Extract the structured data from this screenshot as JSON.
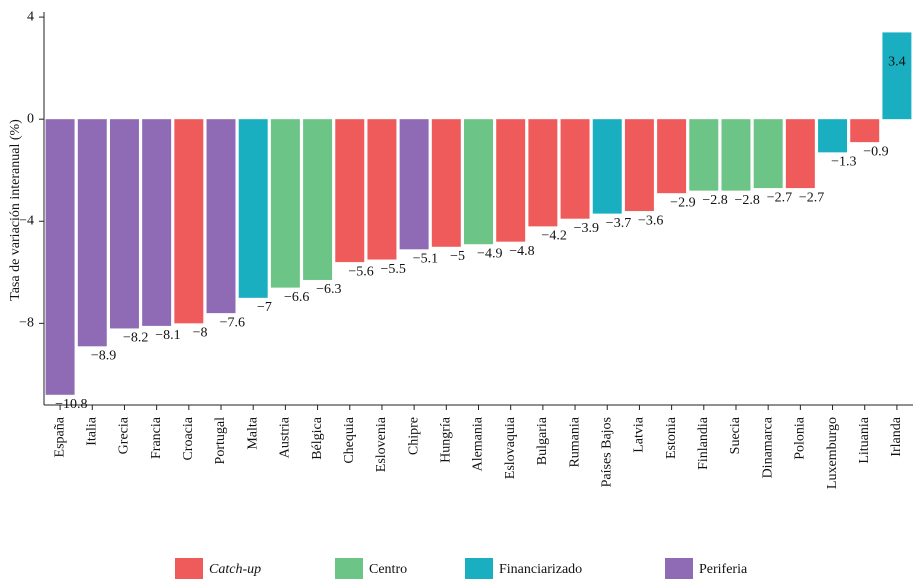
{
  "chart_data": {
    "type": "bar",
    "y_label": "Tasa de variación interanual (%)",
    "categories": [
      "España",
      "Italia",
      "Grecia",
      "Francia",
      "Croacia",
      "Portugal",
      "Malta",
      "Austria",
      "Bélgica",
      "Chequia",
      "Eslovenia",
      "Chipre",
      "Hungría",
      "Alemania",
      "Eslovaquia",
      "Bulgaria",
      "Rumania",
      "Países Bajos",
      "Latvia",
      "Estonia",
      "Finlandia",
      "Suecia",
      "Dinamarca",
      "Polonia",
      "Luxemburgo",
      "Lituania",
      "Irlanda"
    ],
    "series": [
      {
        "name": "Catch-up",
        "color": "#ef5a5a",
        "values": [
          null,
          null,
          null,
          null,
          -8,
          null,
          null,
          null,
          null,
          -5.6,
          -5.5,
          null,
          -5,
          null,
          -4.8,
          -4.2,
          -3.9,
          null,
          -3.6,
          -2.9,
          null,
          null,
          null,
          -2.7,
          null,
          -0.9,
          null
        ],
        "value_labels": [
          null,
          null,
          null,
          null,
          "−8",
          null,
          null,
          null,
          null,
          "−5.6",
          "−5.5",
          null,
          "−5",
          null,
          "−4.8",
          "−4.2",
          "−3.9",
          null,
          "−3.6",
          "−2.9",
          null,
          null,
          null,
          "−2.7",
          null,
          "−0.9",
          null
        ]
      },
      {
        "name": "Centro",
        "color": "#6cc486",
        "values": [
          null,
          null,
          null,
          null,
          null,
          null,
          null,
          -6.6,
          -6.3,
          null,
          null,
          null,
          null,
          -4.9,
          null,
          null,
          null,
          null,
          null,
          null,
          -2.8,
          -2.8,
          -2.7,
          null,
          null,
          null,
          null
        ],
        "value_labels": [
          null,
          null,
          null,
          null,
          null,
          null,
          null,
          "−6.6",
          "−6.3",
          null,
          null,
          null,
          null,
          "−4.9",
          null,
          null,
          null,
          null,
          null,
          null,
          "−2.8",
          "−2.8",
          "−2.7",
          null,
          null,
          null,
          null
        ]
      },
      {
        "name": "Financiarizado",
        "color": "#1aafc0",
        "values": [
          null,
          null,
          null,
          null,
          null,
          null,
          -7,
          null,
          null,
          null,
          null,
          null,
          null,
          null,
          null,
          null,
          null,
          -3.7,
          null,
          null,
          null,
          null,
          null,
          null,
          -1.3,
          null,
          3.4
        ],
        "value_labels": [
          null,
          null,
          null,
          null,
          null,
          null,
          "−7",
          null,
          null,
          null,
          null,
          null,
          null,
          null,
          null,
          null,
          null,
          "−3.7",
          null,
          null,
          null,
          null,
          null,
          null,
          "−1.3",
          null,
          "3.4"
        ]
      },
      {
        "name": "Periferia",
        "color": "#8e6bb4",
        "values": [
          -10.8,
          -8.9,
          -8.2,
          -8.1,
          null,
          -7.6,
          null,
          null,
          null,
          null,
          null,
          -5.1,
          null,
          null,
          null,
          null,
          null,
          null,
          null,
          null,
          null,
          null,
          null,
          null,
          null,
          null,
          null
        ],
        "value_labels": [
          "−10.8",
          "−8.9",
          "−8.2",
          "−8.1",
          null,
          "−7.6",
          null,
          null,
          null,
          null,
          null,
          "−5.1",
          null,
          null,
          null,
          null,
          null,
          null,
          null,
          null,
          null,
          null,
          null,
          null,
          null,
          null,
          null
        ]
      }
    ],
    "ylim": [
      -11.2,
      4.2
    ],
    "yticks": [
      {
        "value": -8,
        "label": "−8"
      },
      {
        "value": -4,
        "label": "−4"
      },
      0,
      4
    ],
    "grid": false
  }
}
